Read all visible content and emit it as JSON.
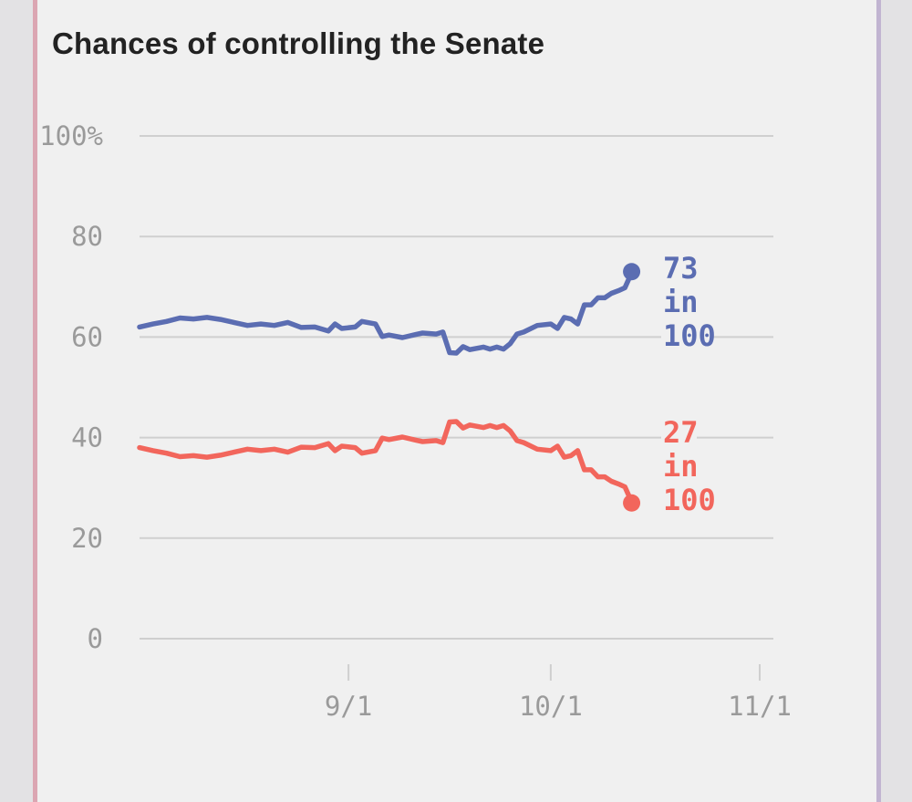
{
  "chart_data": {
    "type": "line",
    "title": "Chances of controlling the Senate",
    "ylim": [
      0,
      100
    ],
    "y_ticks": [
      "100%",
      "80",
      "60",
      "40",
      "20",
      "0"
    ],
    "y_tick_values": [
      100,
      80,
      60,
      40,
      20,
      0
    ],
    "x_ticks": [
      "9/1",
      "10/1",
      "11/1"
    ],
    "x_tick_values": [
      "2018-09-01",
      "2018-10-01",
      "2018-11-01"
    ],
    "xlim": [
      "2018-08-01",
      "2018-11-01"
    ],
    "grid": true,
    "series": [
      {
        "color": "#5b6db2",
        "end_label": [
          "73",
          "in",
          "100"
        ],
        "points": [
          [
            "2018-08-01",
            62.0
          ],
          [
            "2018-08-03",
            62.6
          ],
          [
            "2018-08-05",
            63.1
          ],
          [
            "2018-08-07",
            63.8
          ],
          [
            "2018-08-09",
            63.6
          ],
          [
            "2018-08-11",
            63.9
          ],
          [
            "2018-08-13",
            63.5
          ],
          [
            "2018-08-15",
            62.9
          ],
          [
            "2018-08-17",
            62.3
          ],
          [
            "2018-08-19",
            62.6
          ],
          [
            "2018-08-21",
            62.3
          ],
          [
            "2018-08-23",
            62.9
          ],
          [
            "2018-08-25",
            61.9
          ],
          [
            "2018-08-27",
            62.0
          ],
          [
            "2018-08-29",
            61.2
          ],
          [
            "2018-08-30",
            62.6
          ],
          [
            "2018-08-31",
            61.7
          ],
          [
            "2018-09-02",
            62.0
          ],
          [
            "2018-09-03",
            63.1
          ],
          [
            "2018-09-05",
            62.6
          ],
          [
            "2018-09-06",
            60.1
          ],
          [
            "2018-09-07",
            60.4
          ],
          [
            "2018-09-09",
            59.9
          ],
          [
            "2018-09-11",
            60.5
          ],
          [
            "2018-09-12",
            60.8
          ],
          [
            "2018-09-14",
            60.6
          ],
          [
            "2018-09-15",
            61.0
          ],
          [
            "2018-09-16",
            56.9
          ],
          [
            "2018-09-17",
            56.8
          ],
          [
            "2018-09-18",
            58.1
          ],
          [
            "2018-09-19",
            57.5
          ],
          [
            "2018-09-21",
            58.0
          ],
          [
            "2018-09-22",
            57.6
          ],
          [
            "2018-09-23",
            58.0
          ],
          [
            "2018-09-24",
            57.6
          ],
          [
            "2018-09-25",
            58.7
          ],
          [
            "2018-09-26",
            60.6
          ],
          [
            "2018-09-27",
            61.0
          ],
          [
            "2018-09-29",
            62.3
          ],
          [
            "2018-10-01",
            62.6
          ],
          [
            "2018-10-02",
            61.7
          ],
          [
            "2018-10-03",
            63.9
          ],
          [
            "2018-10-04",
            63.6
          ],
          [
            "2018-10-05",
            62.6
          ],
          [
            "2018-10-06",
            66.4
          ],
          [
            "2018-10-07",
            66.4
          ],
          [
            "2018-10-08",
            67.8
          ],
          [
            "2018-10-09",
            67.8
          ],
          [
            "2018-10-10",
            68.7
          ],
          [
            "2018-10-11",
            69.2
          ],
          [
            "2018-10-12",
            69.8
          ],
          [
            "2018-10-13",
            72.8
          ]
        ],
        "end_value": 73
      },
      {
        "color": "#f2665c",
        "end_label": [
          "27",
          "in",
          "100"
        ],
        "points": [
          [
            "2018-08-01",
            38.0
          ],
          [
            "2018-08-03",
            37.4
          ],
          [
            "2018-08-05",
            36.9
          ],
          [
            "2018-08-07",
            36.2
          ],
          [
            "2018-08-09",
            36.4
          ],
          [
            "2018-08-11",
            36.1
          ],
          [
            "2018-08-13",
            36.5
          ],
          [
            "2018-08-15",
            37.1
          ],
          [
            "2018-08-17",
            37.7
          ],
          [
            "2018-08-19",
            37.4
          ],
          [
            "2018-08-21",
            37.7
          ],
          [
            "2018-08-23",
            37.1
          ],
          [
            "2018-08-25",
            38.1
          ],
          [
            "2018-08-27",
            38.0
          ],
          [
            "2018-08-29",
            38.8
          ],
          [
            "2018-08-30",
            37.4
          ],
          [
            "2018-08-31",
            38.3
          ],
          [
            "2018-09-02",
            38.0
          ],
          [
            "2018-09-03",
            36.9
          ],
          [
            "2018-09-05",
            37.4
          ],
          [
            "2018-09-06",
            39.9
          ],
          [
            "2018-09-07",
            39.6
          ],
          [
            "2018-09-09",
            40.1
          ],
          [
            "2018-09-11",
            39.5
          ],
          [
            "2018-09-12",
            39.2
          ],
          [
            "2018-09-14",
            39.4
          ],
          [
            "2018-09-15",
            39.0
          ],
          [
            "2018-09-16",
            43.1
          ],
          [
            "2018-09-17",
            43.2
          ],
          [
            "2018-09-18",
            41.9
          ],
          [
            "2018-09-19",
            42.5
          ],
          [
            "2018-09-21",
            42.0
          ],
          [
            "2018-09-22",
            42.4
          ],
          [
            "2018-09-23",
            42.0
          ],
          [
            "2018-09-24",
            42.4
          ],
          [
            "2018-09-25",
            41.3
          ],
          [
            "2018-09-26",
            39.4
          ],
          [
            "2018-09-27",
            39.0
          ],
          [
            "2018-09-29",
            37.7
          ],
          [
            "2018-10-01",
            37.4
          ],
          [
            "2018-10-02",
            38.3
          ],
          [
            "2018-10-03",
            36.1
          ],
          [
            "2018-10-04",
            36.4
          ],
          [
            "2018-10-05",
            37.4
          ],
          [
            "2018-10-06",
            33.6
          ],
          [
            "2018-10-07",
            33.6
          ],
          [
            "2018-10-08",
            32.2
          ],
          [
            "2018-10-09",
            32.2
          ],
          [
            "2018-10-10",
            31.3
          ],
          [
            "2018-10-11",
            30.8
          ],
          [
            "2018-10-12",
            30.2
          ],
          [
            "2018-10-13",
            27.2
          ]
        ],
        "end_value": 27
      }
    ]
  }
}
